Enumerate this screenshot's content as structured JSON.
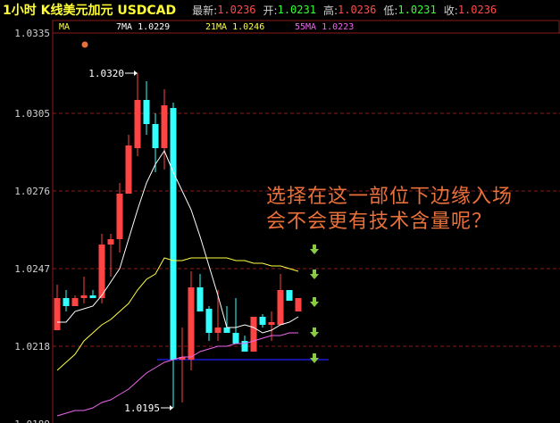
{
  "header": {
    "title": "1小时 K线美元加元  USDCAD",
    "latest_label": "最新:",
    "latest": "1.0236",
    "open_label": "开:",
    "open": "1.0231",
    "high_label": "高:",
    "high": "1.0236",
    "low_label": "低:",
    "low": "1.0231",
    "close_label": "收:",
    "close": "1.0236"
  },
  "ma_legend": {
    "label": "MA",
    "ma7": "7MA 1.0229",
    "ma21": "21MA 1.0246",
    "ma55": "55MA 1.0223"
  },
  "annotation": {
    "line1": "选择在这一部位下边缘入场",
    "line2": "会不会更有技术含量呢？"
  },
  "chart_data": {
    "type": "candlestick",
    "ylim": [
      1.0189,
      1.0335
    ],
    "yticks": [
      "1.0335",
      "1.0305",
      "1.0276",
      "1.0247",
      "1.0218",
      "1.0189"
    ],
    "grid": true,
    "colors": {
      "up": "#ff4444",
      "down": "#33ffff",
      "ma7": "#ffffff",
      "ma21": "#ffff44",
      "ma55": "#ee66ee",
      "support": "#2020ff",
      "arrows": "#88cc44"
    },
    "ohlc": [
      [
        1.0224,
        1.0241,
        1.0224,
        1.0236
      ],
      [
        1.0236,
        1.0239,
        1.0231,
        1.0233
      ],
      [
        1.0233,
        1.0237,
        1.0233,
        1.0236
      ],
      [
        1.0236,
        1.0244,
        1.0234,
        1.0237
      ],
      [
        1.0237,
        1.0239,
        1.0236,
        1.0236
      ],
      [
        1.0236,
        1.026,
        1.0234,
        1.0256
      ],
      [
        1.0256,
        1.026,
        1.0244,
        1.0258
      ],
      [
        1.0258,
        1.0279,
        1.0253,
        1.0275
      ],
      [
        1.0275,
        1.0297,
        1.0275,
        1.0293
      ],
      [
        1.0292,
        1.032,
        1.0289,
        1.031
      ],
      [
        1.031,
        1.0317,
        1.0297,
        1.0301
      ],
      [
        1.0301,
        1.0305,
        1.0283,
        1.0292
      ],
      [
        1.0292,
        1.0314,
        1.0284,
        1.0308
      ],
      [
        1.0307,
        1.0309,
        1.0195,
        1.0213
      ],
      [
        1.0213,
        1.0225,
        1.0197,
        1.0214
      ],
      [
        1.0213,
        1.0246,
        1.0209,
        1.024
      ],
      [
        1.024,
        1.0245,
        1.0231,
        1.0231
      ],
      [
        1.0232,
        1.0233,
        1.022,
        1.0223
      ],
      [
        1.0223,
        1.0239,
        1.022,
        1.0225
      ],
      [
        1.0225,
        1.0233,
        1.0223,
        1.0223
      ],
      [
        1.0223,
        1.0236,
        1.0219,
        1.0219
      ],
      [
        1.022,
        1.0222,
        1.0216,
        1.0216
      ],
      [
        1.0216,
        1.0229,
        1.0216,
        1.0229
      ],
      [
        1.0229,
        1.023,
        1.0225,
        1.0226
      ],
      [
        1.0226,
        1.0231,
        1.022,
        1.0227
      ],
      [
        1.0226,
        1.0245,
        1.0226,
        1.0239
      ],
      [
        1.0239,
        1.0239,
        1.0235,
        1.0235
      ],
      [
        1.0231,
        1.0236,
        1.0231,
        1.0236
      ]
    ],
    "ma7": [
      1.0227,
      1.0227,
      1.0231,
      1.0232,
      1.0233,
      1.0237,
      1.0242,
      1.0247,
      1.0258,
      1.0269,
      1.0279,
      1.0286,
      1.0291,
      1.0283,
      1.0276,
      1.0269,
      1.0259,
      1.0248,
      1.0237,
      1.0225,
      1.0225,
      1.0226,
      1.0225,
      1.0223,
      1.0224,
      1.0226,
      1.0227,
      1.0229
    ],
    "ma21": [
      1.0209,
      1.0212,
      1.0215,
      1.022,
      1.0223,
      1.0226,
      1.0228,
      1.0231,
      1.0234,
      1.0239,
      1.0243,
      1.0245,
      1.0251,
      1.025,
      1.025,
      1.0251,
      1.0251,
      1.0251,
      1.0251,
      1.0251,
      1.025,
      1.025,
      1.0249,
      1.0249,
      1.0248,
      1.0248,
      1.0247,
      1.0246
    ],
    "ma55": [
      1.0192,
      1.0193,
      1.0194,
      1.0194,
      1.0195,
      1.0197,
      1.0198,
      1.02,
      1.0202,
      1.0205,
      1.0208,
      1.021,
      1.0212,
      1.0213,
      1.0214,
      1.0214,
      1.0216,
      1.0217,
      1.0218,
      1.0218,
      1.0219,
      1.0219,
      1.022,
      1.0221,
      1.0222,
      1.0222,
      1.0223,
      1.0223
    ],
    "high_marker": "1.0320",
    "low_marker": "1.0195",
    "support_level": 1.0213,
    "arrow_count": 5
  }
}
